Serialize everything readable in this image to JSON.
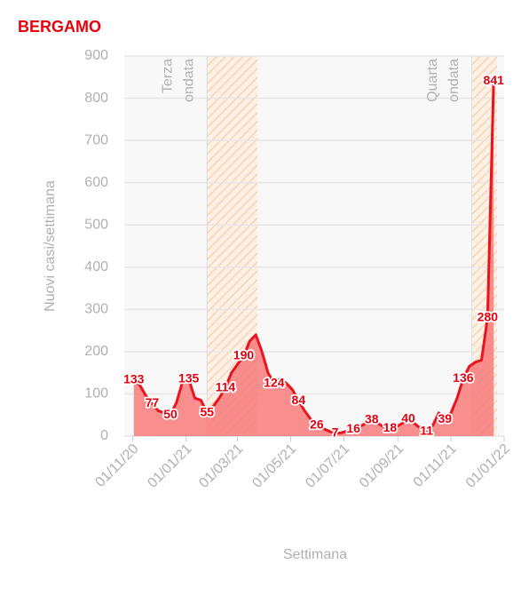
{
  "chart_data": {
    "type": "area",
    "title": "BERGAMO",
    "x_label": "Settimana",
    "y_label": "Nuovi casi/settimana",
    "x": [
      "2020-11-02",
      "2020-11-09",
      "2020-11-16",
      "2020-11-23",
      "2020-11-30",
      "2020-12-07",
      "2020-12-14",
      "2020-12-21",
      "2020-12-28",
      "2021-01-04",
      "2021-01-11",
      "2021-01-18",
      "2021-01-25",
      "2021-02-01",
      "2021-02-08",
      "2021-02-15",
      "2021-02-22",
      "2021-03-01",
      "2021-03-08",
      "2021-03-15",
      "2021-03-22",
      "2021-03-29",
      "2021-04-05",
      "2021-04-12",
      "2021-04-19",
      "2021-04-26",
      "2021-05-03",
      "2021-05-10",
      "2021-05-17",
      "2021-05-24",
      "2021-05-31",
      "2021-06-07",
      "2021-06-14",
      "2021-06-21",
      "2021-06-28",
      "2021-07-05",
      "2021-07-12",
      "2021-07-19",
      "2021-07-26",
      "2021-08-02",
      "2021-08-09",
      "2021-08-16",
      "2021-08-23",
      "2021-08-30",
      "2021-09-06",
      "2021-09-13",
      "2021-09-20",
      "2021-09-27",
      "2021-10-04",
      "2021-10-11",
      "2021-10-18",
      "2021-10-25",
      "2021-11-01",
      "2021-11-08",
      "2021-11-15",
      "2021-11-22",
      "2021-11-29",
      "2021-12-06",
      "2021-12-13",
      "2021-12-20"
    ],
    "values": [
      133,
      120,
      95,
      77,
      60,
      55,
      50,
      80,
      130,
      135,
      90,
      85,
      55,
      70,
      90,
      114,
      150,
      170,
      190,
      225,
      240,
      200,
      150,
      124,
      135,
      125,
      110,
      84,
      60,
      40,
      26,
      18,
      12,
      7,
      8,
      12,
      16,
      22,
      30,
      38,
      30,
      22,
      18,
      22,
      30,
      40,
      30,
      18,
      11,
      25,
      55,
      39,
      55,
      90,
      136,
      165,
      175,
      180,
      280,
      841
    ],
    "value_labels": [
      "133",
      null,
      null,
      "77",
      null,
      null,
      "50",
      null,
      null,
      "135",
      null,
      null,
      "55",
      null,
      null,
      "114",
      null,
      null,
      "190",
      null,
      null,
      null,
      null,
      "124",
      null,
      null,
      null,
      "84",
      null,
      null,
      "26",
      null,
      null,
      "7",
      null,
      null,
      "16",
      null,
      null,
      "38",
      null,
      null,
      "18",
      null,
      null,
      "40",
      null,
      null,
      "11",
      null,
      null,
      "39",
      null,
      null,
      "136",
      null,
      null,
      null,
      "280",
      "841"
    ],
    "color": "#e8141e",
    "fill": "#f87b7b",
    "xlim": [
      "2020-10-22",
      "2022-01-01"
    ],
    "xticks": [
      {
        "value": "2020-11-01",
        "label": "01/11/20"
      },
      {
        "value": "2021-01-01",
        "label": "01/01/21"
      },
      {
        "value": "2021-03-01",
        "label": "01/03/21"
      },
      {
        "value": "2021-05-01",
        "label": "01/05/21"
      },
      {
        "value": "2021-07-01",
        "label": "01/07/21"
      },
      {
        "value": "2021-09-01",
        "label": "01/09/21"
      },
      {
        "value": "2021-11-01",
        "label": "01/11/21"
      },
      {
        "value": "2022-01-01",
        "label": "01/01/22"
      }
    ],
    "ylim": [
      0,
      900
    ],
    "yticks": [
      0,
      100,
      200,
      300,
      400,
      500,
      600,
      700,
      800,
      900
    ],
    "grid": true,
    "bands": [
      {
        "start": "2021-01-25",
        "end": "2021-03-24",
        "label": [
          "Terza",
          "ondata"
        ]
      },
      {
        "start": "2021-11-25",
        "end": "2021-12-24",
        "label": [
          "Quarta",
          "ondata"
        ]
      }
    ]
  }
}
